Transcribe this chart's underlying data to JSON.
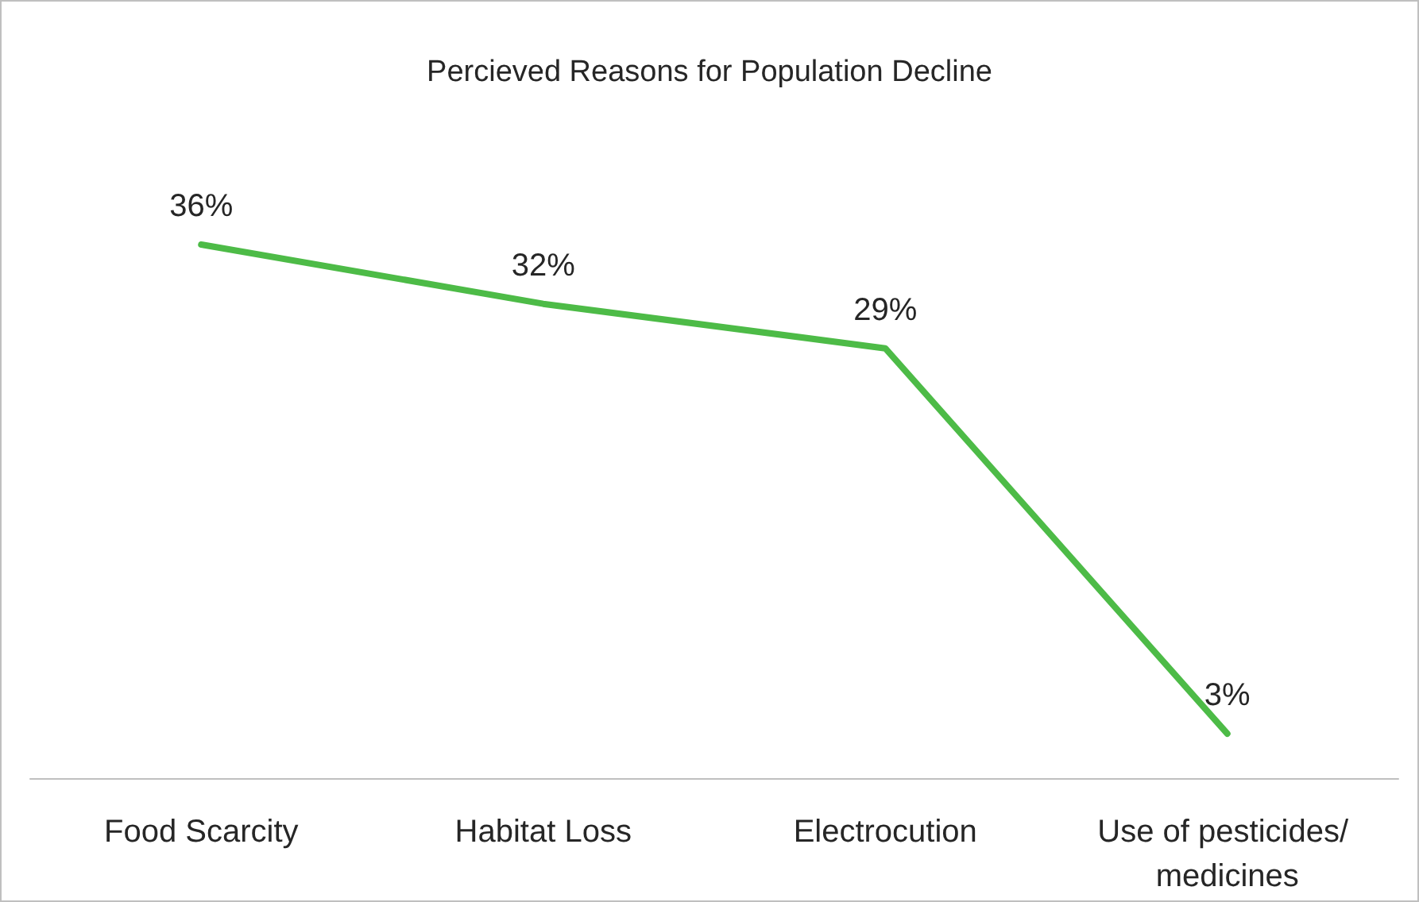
{
  "chart_data": {
    "type": "line",
    "title": "Percieved Reasons for Population Decline",
    "categories": [
      "Food Scarcity",
      "Habitat Loss",
      "Electrocution",
      "Use of pesticides/ medicines"
    ],
    "series": [
      {
        "color": "#4dbb47",
        "values": [
          36,
          32,
          29,
          3
        ],
        "value_labels": [
          "36%",
          "32%",
          "29%",
          "3%"
        ]
      }
    ],
    "grid": false
  }
}
